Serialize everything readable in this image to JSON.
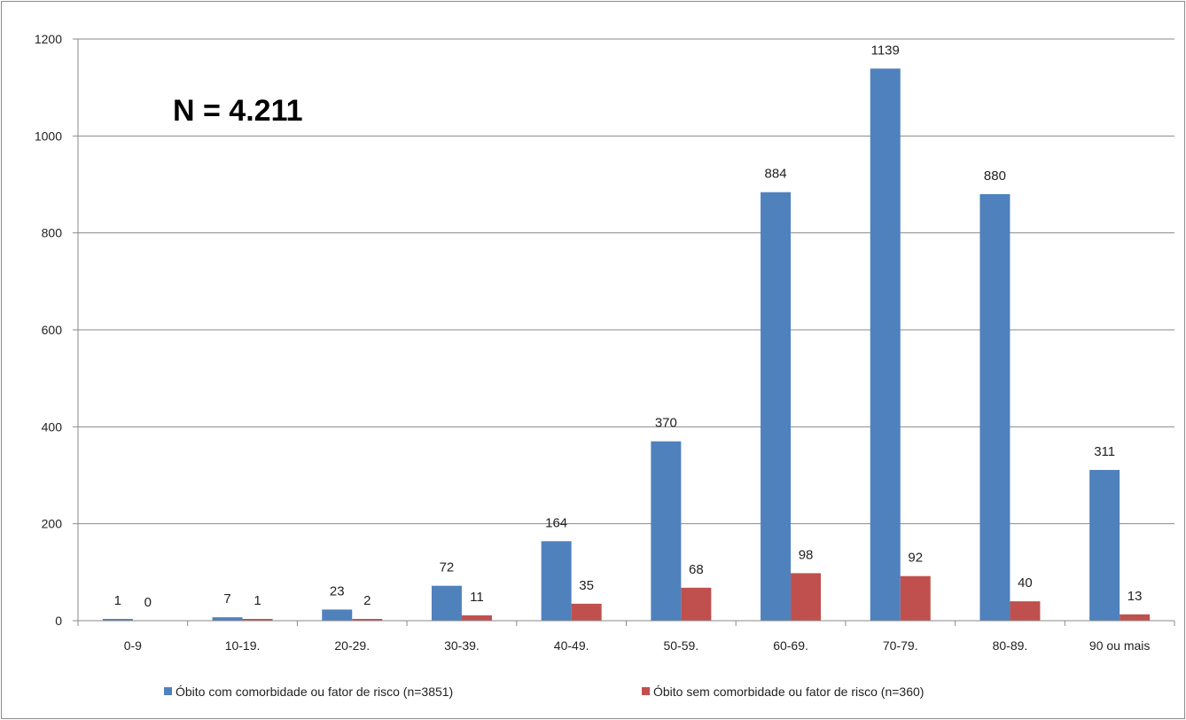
{
  "chart_data": {
    "type": "bar",
    "title": "",
    "xlabel": "",
    "ylabel": "",
    "annotation": "N = 4.211",
    "categories": [
      "0-9",
      "10-19.",
      "20-29.",
      "30-39.",
      "40-49.",
      "50-59.",
      "60-69.",
      "70-79.",
      "80-89.",
      "90 ou mais"
    ],
    "series": [
      {
        "name": "Óbito com comorbidade ou fator de risco (n=3851)",
        "color": "#4f81bd",
        "values": [
          1,
          7,
          23,
          72,
          164,
          370,
          884,
          1139,
          880,
          311
        ]
      },
      {
        "name": "Óbito sem comorbidade ou fator de risco (n=360)",
        "color": "#c0504d",
        "values": [
          0,
          1,
          2,
          11,
          35,
          68,
          98,
          92,
          40,
          13
        ]
      }
    ],
    "ylim": [
      0,
      1200
    ],
    "yticks": [
      0,
      200,
      400,
      600,
      800,
      1000,
      1200
    ],
    "grid": true,
    "legend_position": "bottom"
  }
}
